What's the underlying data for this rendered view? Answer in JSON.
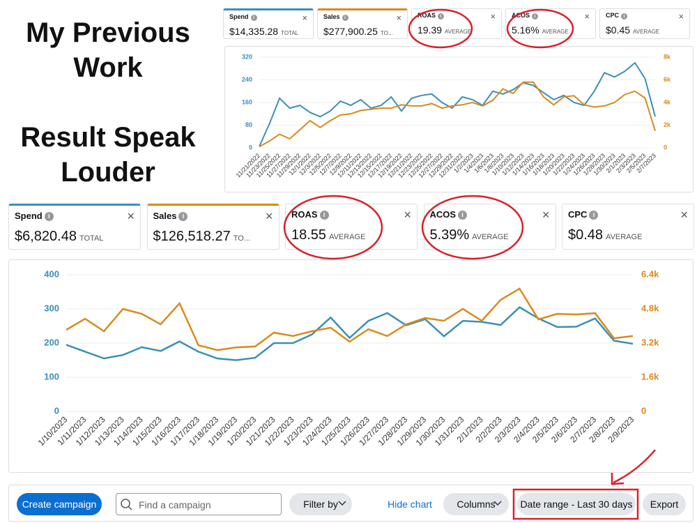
{
  "heading": {
    "line1": "My Previous Work",
    "line2": "Result Speak Louder"
  },
  "top_metrics": [
    {
      "name": "Spend",
      "value": "$14,335.28",
      "suffix": "TOTAL",
      "color": "#3b8fb6"
    },
    {
      "name": "Sales",
      "value": "$277,900.25",
      "suffix": "TO...",
      "color": "#d98a1c"
    },
    {
      "name": "ROAS",
      "value": "19.39",
      "suffix": "AVERAGE"
    },
    {
      "name": "ACOS",
      "value": "5.16%",
      "suffix": "AVERAGE"
    },
    {
      "name": "CPC",
      "value": "$0.45",
      "suffix": "AVERAGE"
    }
  ],
  "bottom_metrics": [
    {
      "name": "Spend",
      "value": "$6,820.48",
      "suffix": "TOTAL",
      "color": "#3b8fb6"
    },
    {
      "name": "Sales",
      "value": "$126,518.27",
      "suffix": "TO...",
      "color": "#d98a1c"
    },
    {
      "name": "ROAS",
      "value": "18.55",
      "suffix": "AVERAGE"
    },
    {
      "name": "ACOS",
      "value": "5.39%",
      "suffix": "AVERAGE"
    },
    {
      "name": "CPC",
      "value": "$0.48",
      "suffix": "AVERAGE"
    }
  ],
  "toolbar": {
    "create": "Create campaign",
    "search": "Find a campaign",
    "filter": "Filter by",
    "hide": "Hide chart",
    "columns": "Columns",
    "date_range": "Date range - Last 30 days",
    "export": "Export"
  },
  "chart_data": [
    {
      "type": "line",
      "categories": [
        "11/21/2022",
        "11/23/2022",
        "11/25/2022",
        "11/27/2022",
        "11/29/2022",
        "12/1/2022",
        "12/3/2022",
        "12/5/2022",
        "12/7/2022",
        "12/9/2022",
        "12/11/2022",
        "12/13/2022",
        "12/15/2022",
        "12/17/2022",
        "12/19/2022",
        "12/21/2022",
        "12/23/2022",
        "12/25/2022",
        "12/27/2022",
        "12/29/2022",
        "12/31/2022",
        "1/2/2023",
        "1/4/2023",
        "1/6/2023",
        "1/8/2023",
        "1/10/2023",
        "1/12/2023",
        "1/14/2023",
        "1/16/2023",
        "1/18/2023",
        "1/20/2023",
        "1/22/2023",
        "1/24/2023",
        "1/26/2023",
        "1/28/2023",
        "1/30/2023",
        "2/1/2023",
        "2/3/2023",
        "2/5/2023",
        "2/7/2023"
      ],
      "series": [
        {
          "name": "Spend",
          "color": "#3b8fb6",
          "values": [
            5,
            85,
            175,
            140,
            150,
            125,
            110,
            130,
            165,
            150,
            170,
            140,
            150,
            180,
            130,
            175,
            185,
            190,
            160,
            140,
            180,
            170,
            150,
            200,
            190,
            205,
            230,
            220,
            195,
            170,
            185,
            160,
            150,
            200,
            265,
            250,
            270,
            300,
            245,
            110
          ]
        },
        {
          "name": "Sales",
          "color": "#d98a1c",
          "axis": "y2",
          "values": [
            100,
            600,
            1200,
            800,
            1600,
            2400,
            1800,
            2400,
            2900,
            3000,
            3300,
            3400,
            3500,
            3500,
            3800,
            3700,
            3700,
            3900,
            3500,
            3700,
            3800,
            4000,
            3700,
            4200,
            5200,
            4800,
            5800,
            5800,
            4500,
            3800,
            4500,
            4600,
            3800,
            3600,
            3700,
            4000,
            4700,
            5000,
            4400,
            1500
          ]
        }
      ],
      "ylim": [
        0,
        320
      ],
      "yticks": [
        0,
        80,
        160,
        240,
        320
      ],
      "y2lim": [
        0,
        8000
      ],
      "y2ticks": [
        0,
        {
          "value": 2000,
          "label": "2k"
        },
        {
          "value": 4000,
          "label": "4k"
        },
        {
          "value": 6000,
          "label": "6k"
        },
        {
          "value": 8000,
          "label": "8k"
        }
      ]
    },
    {
      "type": "line",
      "categories": [
        "1/10/2023",
        "1/11/2023",
        "1/12/2023",
        "1/13/2023",
        "1/14/2023",
        "1/15/2023",
        "1/16/2023",
        "1/17/2023",
        "1/18/2023",
        "1/19/2023",
        "1/20/2023",
        "1/21/2023",
        "1/22/2023",
        "1/23/2023",
        "1/24/2023",
        "1/25/2023",
        "1/26/2023",
        "1/27/2023",
        "1/28/2023",
        "1/29/2023",
        "1/30/2023",
        "1/31/2023",
        "2/1/2023",
        "2/2/2023",
        "2/3/2023",
        "2/4/2023",
        "2/5/2023",
        "2/6/2023",
        "2/7/2023",
        "2/8/2023",
        "2/9/2023"
      ],
      "series": [
        {
          "name": "Spend",
          "color": "#3b8fb6",
          "values": [
            195,
            175,
            155,
            165,
            188,
            177,
            205,
            175,
            155,
            150,
            157,
            200,
            200,
            225,
            275,
            215,
            265,
            288,
            252,
            270,
            220,
            265,
            262,
            253,
            305,
            272,
            247,
            248,
            272,
            207,
            198
          ]
        },
        {
          "name": "Sales",
          "color": "#d98a1c",
          "axis": "y2",
          "values": [
            3820,
            4340,
            3755,
            4800,
            4570,
            4080,
            5060,
            3100,
            2870,
            3000,
            3040,
            3690,
            3530,
            3755,
            3920,
            3265,
            3850,
            3530,
            4080,
            4375,
            4245,
            4800,
            4245,
            5225,
            5750,
            4310,
            4570,
            4540,
            4600,
            3430,
            3530
          ]
        }
      ],
      "ylim": [
        0,
        400
      ],
      "yticks": [
        0,
        100,
        200,
        300,
        400
      ],
      "y2lim": [
        0,
        6400
      ],
      "y2ticks": [
        0,
        {
          "value": 1600,
          "label": "1.6k"
        },
        {
          "value": 3200,
          "label": "3.2k"
        },
        {
          "value": 4800,
          "label": "4.8k"
        },
        {
          "value": 6400,
          "label": "6.4k"
        }
      ]
    }
  ]
}
